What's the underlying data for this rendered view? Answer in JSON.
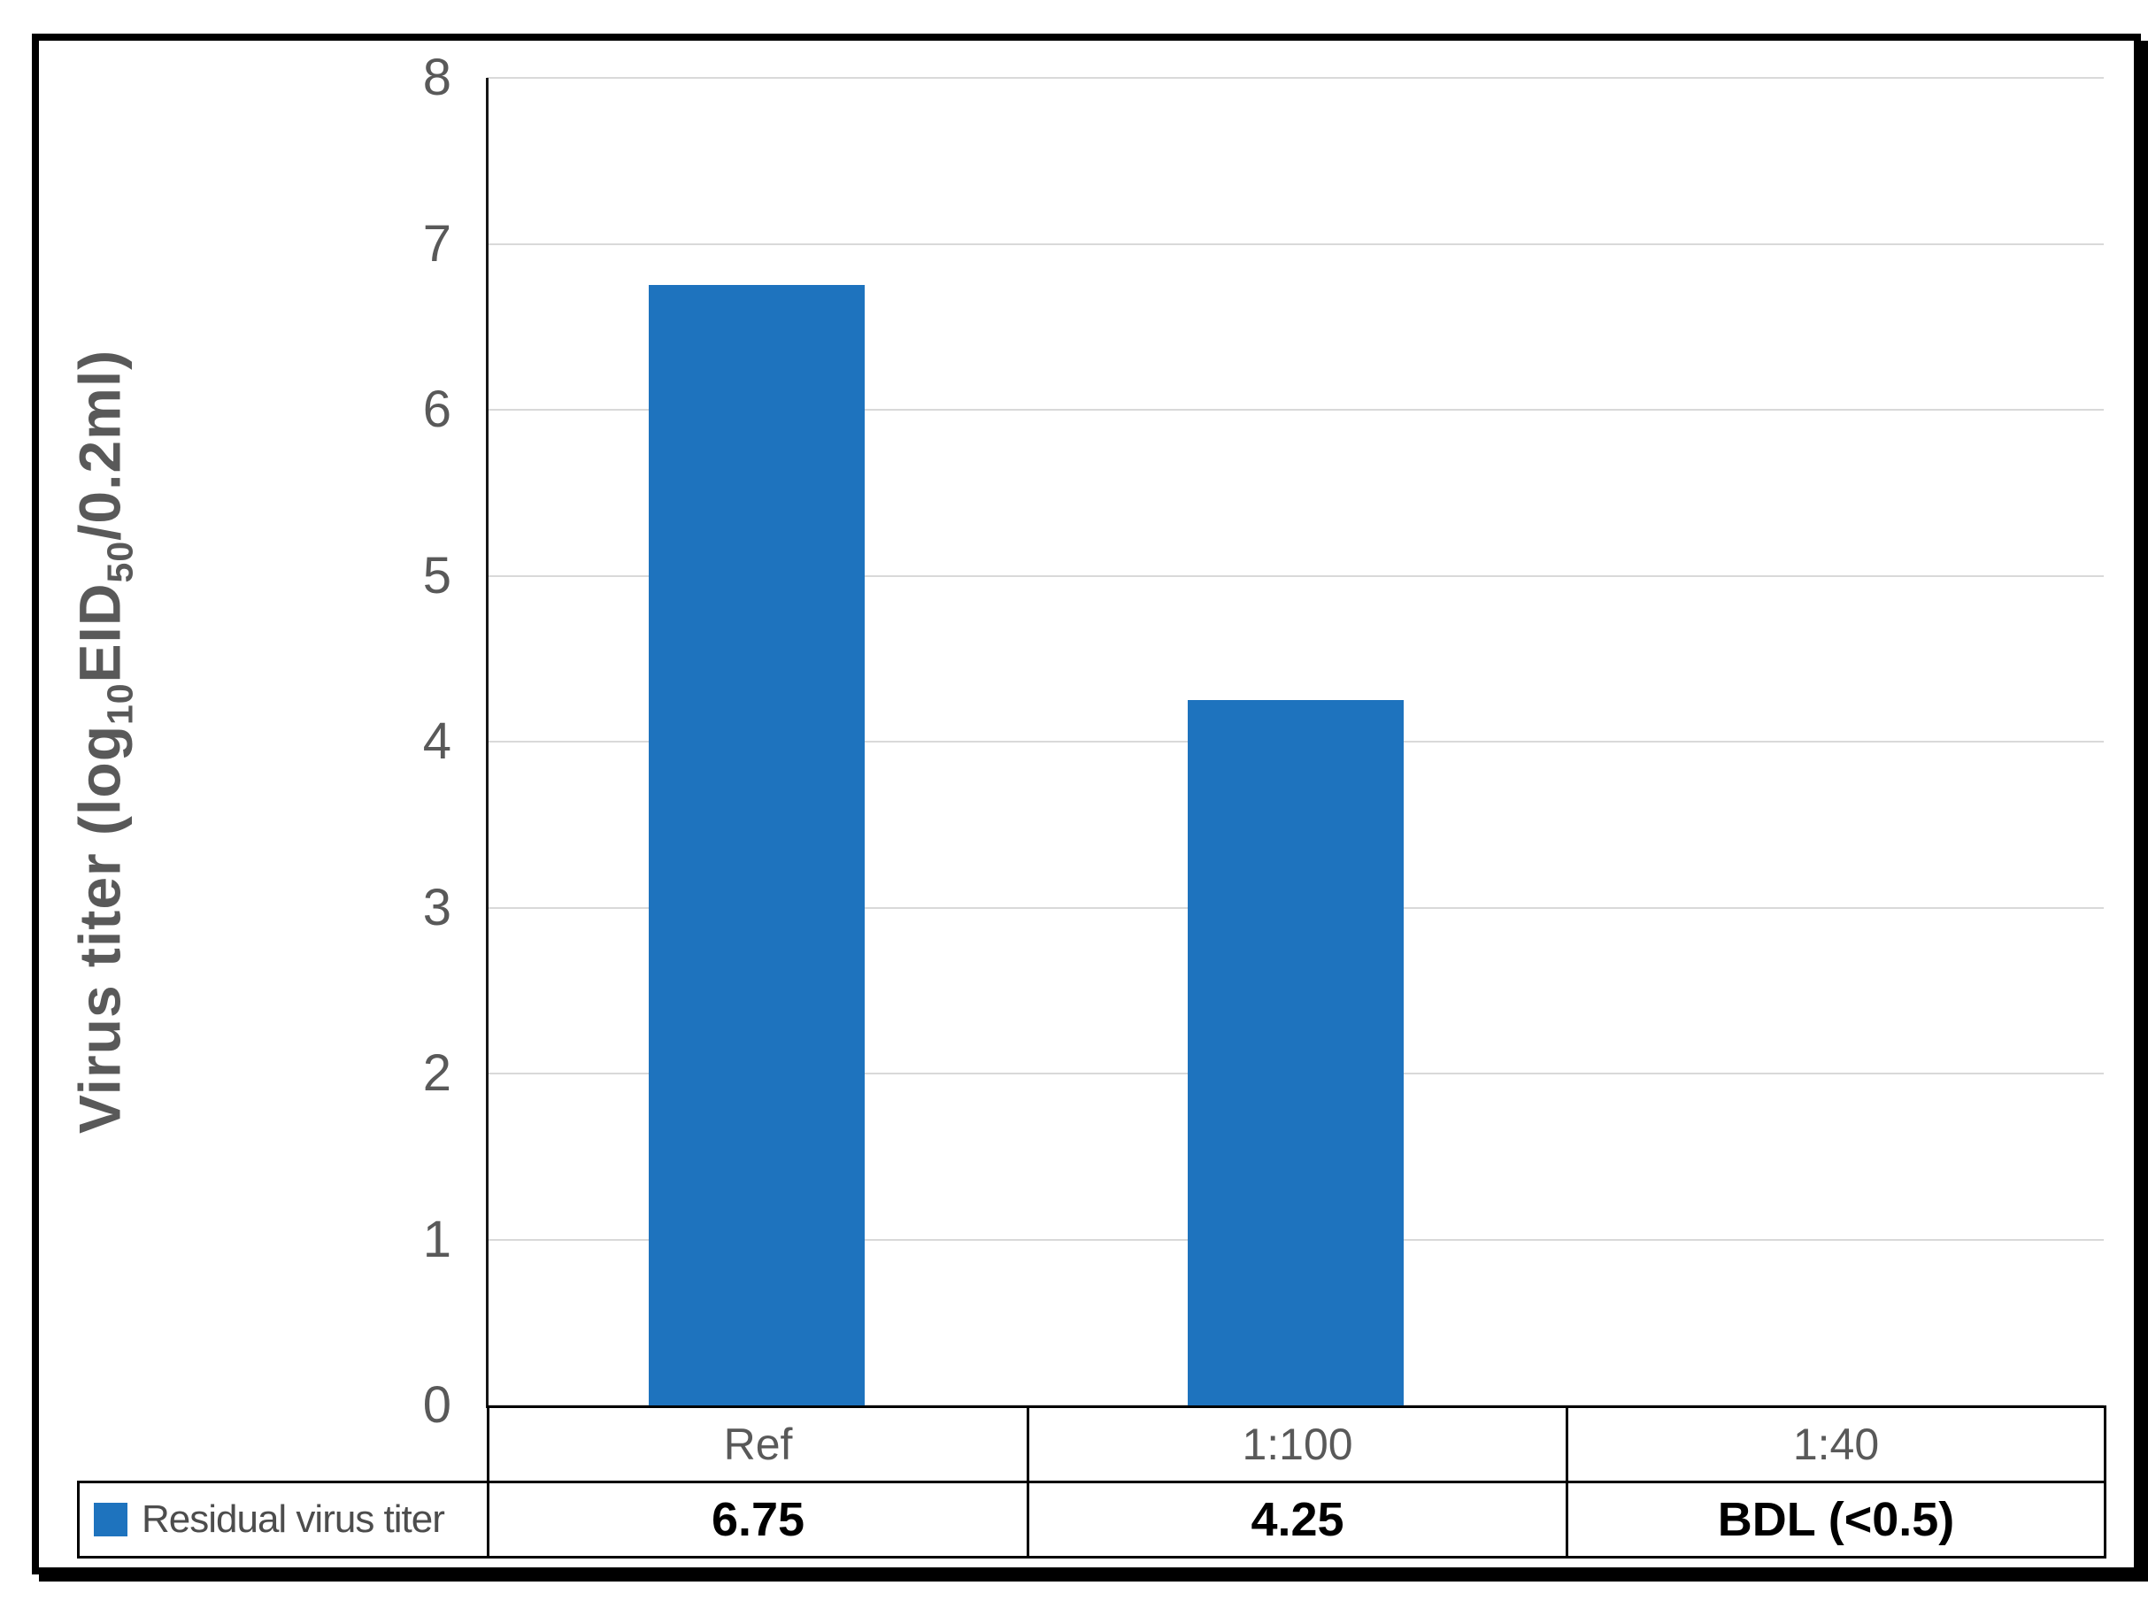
{
  "chart_data": {
    "type": "bar",
    "title": "",
    "categories": [
      "Ref",
      "1:100",
      "1:40"
    ],
    "series": [
      {
        "name": "Residual virus titer",
        "values": [
          6.75,
          4.25,
          null
        ],
        "display_values": [
          "6.75",
          "4.25",
          "BDL (<0.5)"
        ]
      }
    ],
    "ylabel": "Virus titer (log10EID50/0.2ml)",
    "ylim": [
      0,
      8
    ],
    "yticks": [
      "8",
      "7",
      "6",
      "5",
      "4",
      "3",
      "2",
      "1",
      "0"
    ],
    "grid": "horizontal",
    "legend_position": "bottom-table-left-cell",
    "colors": {
      "bar": "#1e73be",
      "gridline": "#d9d9d9",
      "axis": "#161616",
      "tick_text": "#595959",
      "value_text": "#000000"
    },
    "bdl_meaning": "BDL (<0.5)"
  },
  "ylabel_parts": {
    "p1": "Virus titer (log",
    "s1": "10",
    "p2": "EID",
    "s2": "50",
    "p3": "/0.2ml)"
  },
  "table": {
    "headers": [
      "Ref",
      "1:100",
      "1:40"
    ],
    "legend": {
      "label": "Residual virus titer",
      "swatch_color": "#1e73be"
    },
    "values": [
      "6.75",
      "4.25",
      "BDL (<0.5)"
    ]
  }
}
